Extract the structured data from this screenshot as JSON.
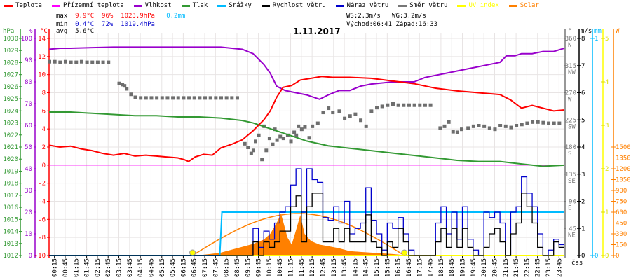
{
  "legend": [
    {
      "label": "Teplota",
      "color": "#ff0000"
    },
    {
      "label": "Přízemní teplota",
      "color": "#ff00ff"
    },
    {
      "label": "Vlhkost",
      "color": "#9900cc"
    },
    {
      "label": "Tlak",
      "color": "#339933"
    },
    {
      "label": "Srážky",
      "color": "#00bbff"
    },
    {
      "label": "Rychlost větru",
      "color": "#000000"
    },
    {
      "label": "Náraz větru",
      "color": "#0000cc"
    },
    {
      "label": "Směr větru",
      "color": "#777777"
    },
    {
      "label": "UV index",
      "color": "#ffff00"
    },
    {
      "label": "Solar",
      "color": "#ff8000"
    }
  ],
  "stats": {
    "max_label": "max",
    "max_temp": "9.9°C",
    "max_hum": "96%",
    "max_pres": "1023.9hPa",
    "rain": "0.2mm",
    "min_label": "min",
    "min_temp": "0.4°C",
    "min_hum": "72%",
    "min_pres": "1019.4hPa",
    "avg_label": "avg",
    "avg_temp": "5.6°C",
    "ws": "WS:2.3m/s",
    "wg": "WG:3.2m/s",
    "sunrise": "Východ:06:41",
    "sunset": "Západ:16:33"
  },
  "chart_data": {
    "type": "line",
    "title": "1.11.2017",
    "xlabel": "čas",
    "x_labels": [
      "00:15",
      "00:45",
      "01:15",
      "01:45",
      "02:15",
      "02:45",
      "03:15",
      "03:45",
      "04:15",
      "04:45",
      "05:15",
      "05:45",
      "06:15",
      "06:45",
      "07:15",
      "07:45",
      "08:15",
      "08:45",
      "09:15",
      "09:45",
      "10:15",
      "10:45",
      "11:15",
      "11:45",
      "12:15",
      "12:45",
      "13:15",
      "13:45",
      "14:15",
      "14:45",
      "15:15",
      "15:45",
      "16:15",
      "16:45",
      "17:15",
      "17:45",
      "18:15",
      "18:45",
      "19:15",
      "19:45",
      "20:15",
      "20:45",
      "21:15",
      "21:45",
      "22:15",
      "22:45",
      "23:15",
      "23:45"
    ],
    "axes": {
      "pressure": {
        "unit": "hPa",
        "ticks": [
          "1030",
          "1029",
          "1028",
          "1027",
          "1026",
          "1025",
          "1024",
          "1023",
          "1022",
          "1021",
          "1020",
          "1019",
          "1018",
          "1017",
          "1016",
          "1015",
          "1014",
          "1013",
          "1012"
        ],
        "range": [
          1012,
          1030
        ]
      },
      "humidity": {
        "unit": "%",
        "ticks": [
          "100",
          "90",
          "80",
          "70",
          "60",
          "50",
          "40",
          "30",
          "20",
          "10",
          "0"
        ],
        "range": [
          0,
          100
        ]
      },
      "temperature": {
        "unit": "°C",
        "ticks": [
          "14",
          "12",
          "10",
          "8",
          "6",
          "4",
          "2",
          "0",
          "-2",
          "-4",
          "-6",
          "-8",
          "-10"
        ],
        "range": [
          -10,
          14
        ]
      },
      "direction": {
        "unit": "°",
        "ticks": [
          "360",
          "315",
          "270",
          "225",
          "180",
          "135",
          "90",
          "45"
        ],
        "compass": [
          "N",
          "NW",
          "W",
          "SW",
          "S",
          "SE",
          "E",
          "NE"
        ],
        "range": [
          0,
          360
        ]
      },
      "wind": {
        "unit": "m/s",
        "ticks": [
          "8",
          "7",
          "6",
          "5",
          "4",
          "3",
          "2",
          "1",
          "0"
        ],
        "range": [
          0,
          8
        ]
      },
      "rain": {
        "unit": "mm",
        "ticks": [
          "1",
          "0"
        ],
        "range": [
          0,
          1
        ]
      },
      "uv": {
        "unit": "",
        "ticks": [
          "5",
          "4",
          "3",
          "2",
          "1",
          "0"
        ],
        "range": [
          0,
          5
        ]
      },
      "solar": {
        "unit": "W",
        "ticks": [
          "1500",
          "1350",
          "1200",
          "1050",
          "900",
          "750",
          "600",
          "450",
          "300",
          "150",
          "0"
        ],
        "range": [
          0,
          1500
        ]
      }
    },
    "sun_events_hours": [
      6.68,
      16.55
    ],
    "series": {
      "temperature": [
        [
          0,
          2.2
        ],
        [
          0.5,
          2.0
        ],
        [
          1,
          2.1
        ],
        [
          1.5,
          1.8
        ],
        [
          2,
          1.6
        ],
        [
          2.5,
          1.3
        ],
        [
          3,
          1.1
        ],
        [
          3.5,
          1.3
        ],
        [
          4,
          1.0
        ],
        [
          4.5,
          1.1
        ],
        [
          5,
          1.0
        ],
        [
          5.5,
          0.9
        ],
        [
          6,
          0.8
        ],
        [
          6.3,
          0.6
        ],
        [
          6.5,
          0.4
        ],
        [
          6.8,
          0.9
        ],
        [
          7.2,
          1.2
        ],
        [
          7.6,
          1.1
        ],
        [
          8,
          1.9
        ],
        [
          8.5,
          2.3
        ],
        [
          9,
          2.8
        ],
        [
          9.5,
          3.8
        ],
        [
          10,
          5.0
        ],
        [
          10.3,
          6.0
        ],
        [
          10.6,
          7.5
        ],
        [
          10.9,
          8.6
        ],
        [
          11.3,
          8.8
        ],
        [
          11.7,
          9.4
        ],
        [
          12.2,
          9.6
        ],
        [
          12.7,
          9.8
        ],
        [
          13.2,
          9.7
        ],
        [
          14,
          9.7
        ],
        [
          15,
          9.6
        ],
        [
          16,
          9.3
        ],
        [
          17,
          9.0
        ],
        [
          18,
          8.5
        ],
        [
          19,
          8.2
        ],
        [
          20,
          8.0
        ],
        [
          21,
          7.8
        ],
        [
          21.5,
          7.2
        ],
        [
          22,
          6.3
        ],
        [
          22.5,
          6.6
        ],
        [
          23,
          6.3
        ],
        [
          23.5,
          6.0
        ],
        [
          24,
          6.1
        ]
      ],
      "ground_temperature": [
        [
          0,
          0
        ],
        [
          24,
          0
        ]
      ],
      "humidity": [
        [
          0,
          95
        ],
        [
          0.5,
          95.5
        ],
        [
          1,
          95.5
        ],
        [
          3,
          96
        ],
        [
          5,
          96
        ],
        [
          7,
          96
        ],
        [
          8,
          96
        ],
        [
          9,
          95
        ],
        [
          9.5,
          93
        ],
        [
          10,
          88
        ],
        [
          10.3,
          84
        ],
        [
          10.6,
          78
        ],
        [
          11,
          76
        ],
        [
          11.5,
          75
        ],
        [
          12,
          74
        ],
        [
          12.6,
          72
        ],
        [
          13,
          74
        ],
        [
          13.5,
          76
        ],
        [
          14,
          76
        ],
        [
          14.5,
          78
        ],
        [
          15,
          79
        ],
        [
          16,
          80
        ],
        [
          17,
          80
        ],
        [
          17.5,
          82
        ],
        [
          18,
          83
        ],
        [
          18.5,
          84
        ],
        [
          19,
          85
        ],
        [
          19.5,
          86
        ],
        [
          20,
          87
        ],
        [
          20.5,
          88
        ],
        [
          21,
          89
        ],
        [
          21.3,
          92
        ],
        [
          21.7,
          92
        ],
        [
          22,
          93
        ],
        [
          22.5,
          93
        ],
        [
          23,
          94
        ],
        [
          23.5,
          94
        ],
        [
          24,
          95.5
        ]
      ],
      "pressure": [
        [
          0,
          1023.9
        ],
        [
          1,
          1023.9
        ],
        [
          2,
          1023.8
        ],
        [
          3,
          1023.7
        ],
        [
          4,
          1023.6
        ],
        [
          5,
          1023.6
        ],
        [
          6,
          1023.5
        ],
        [
          7,
          1023.5
        ],
        [
          8,
          1023.4
        ],
        [
          9,
          1023.2
        ],
        [
          9.5,
          1023.0
        ],
        [
          10,
          1022.7
        ],
        [
          10.5,
          1022.4
        ],
        [
          11,
          1022.1
        ],
        [
          11.5,
          1021.8
        ],
        [
          12,
          1021.5
        ],
        [
          13,
          1021.1
        ],
        [
          14,
          1020.9
        ],
        [
          15,
          1020.7
        ],
        [
          16,
          1020.5
        ],
        [
          17,
          1020.3
        ],
        [
          18,
          1020.1
        ],
        [
          19,
          1019.9
        ],
        [
          20,
          1019.8
        ],
        [
          21,
          1019.8
        ],
        [
          22,
          1019.6
        ],
        [
          23,
          1019.4
        ],
        [
          24,
          1019.5
        ]
      ],
      "rain_cumulative": [
        [
          0,
          0
        ],
        [
          7.95,
          0
        ],
        [
          8.05,
          0.2
        ],
        [
          24,
          0.2
        ]
      ],
      "uv": [
        [
          0,
          0
        ],
        [
          24,
          0
        ]
      ],
      "solar_theoretical_peak": 580,
      "solar": [
        [
          6.7,
          0
        ],
        [
          7,
          5
        ],
        [
          7.5,
          20
        ],
        [
          8,
          40
        ],
        [
          8.5,
          80
        ],
        [
          9,
          120
        ],
        [
          9.5,
          160
        ],
        [
          10,
          220
        ],
        [
          10.3,
          300
        ],
        [
          10.6,
          450
        ],
        [
          10.8,
          580
        ],
        [
          10.95,
          420
        ],
        [
          11.1,
          250
        ],
        [
          11.3,
          150
        ],
        [
          11.5,
          350
        ],
        [
          11.7,
          560
        ],
        [
          11.9,
          300
        ],
        [
          12.2,
          200
        ],
        [
          12.6,
          150
        ],
        [
          13,
          130
        ],
        [
          13.5,
          100
        ],
        [
          14,
          60
        ],
        [
          14.5,
          50
        ],
        [
          15,
          40
        ],
        [
          15.5,
          30
        ],
        [
          16,
          20
        ],
        [
          16.4,
          10
        ],
        [
          16.6,
          0
        ]
      ],
      "wind_speed": [
        0,
        0,
        0,
        0,
        0,
        0,
        0,
        0,
        0,
        0,
        0,
        0,
        0,
        0,
        0,
        0,
        0,
        0,
        0,
        0,
        0,
        0,
        0,
        0,
        0,
        0,
        0,
        0,
        0,
        0,
        0,
        0,
        0,
        0,
        0,
        0,
        0,
        0,
        0.5,
        0,
        0.5,
        0.3,
        0.5,
        0.9,
        0.9,
        1.8,
        2.2,
        0.5,
        1.8,
        2.3,
        2.3,
        0.5,
        0.5,
        1.0,
        0.5,
        1.0,
        0.5,
        0.5,
        0.5,
        1.5,
        0.5,
        0.3,
        0,
        0.5,
        0.3,
        1.0,
        0.5,
        0,
        0,
        0,
        0,
        0,
        0.5,
        1.0,
        0.3,
        1.0,
        0.3,
        1.0,
        0.3,
        0,
        0,
        0.3,
        0.8,
        1.0,
        0.5,
        0,
        0.8,
        1.2,
        2.3,
        1.8,
        1.2,
        0.3,
        0,
        0,
        0.5,
        0.3
      ],
      "wind_gust": [
        0,
        0,
        0,
        0,
        0,
        0,
        0,
        0,
        0,
        0,
        0,
        0,
        0,
        0,
        0,
        0,
        0,
        0,
        0,
        0,
        0,
        0,
        0,
        0,
        0,
        0,
        0,
        0,
        0,
        0,
        0,
        0,
        0,
        0,
        0,
        0,
        0,
        0,
        1.0,
        0.3,
        0.9,
        0.6,
        1.2,
        1.6,
        1.8,
        2.6,
        3.2,
        1.6,
        3.2,
        2.8,
        2.7,
        1.4,
        1.3,
        1.8,
        1.2,
        2.0,
        0.8,
        1.0,
        1.2,
        2.5,
        1.3,
        0.8,
        0.2,
        1.2,
        1.0,
        1.4,
        0.8,
        0.2,
        0,
        0,
        0,
        0,
        1.2,
        1.8,
        0.8,
        1.6,
        0.6,
        1.8,
        0.6,
        0.2,
        0,
        1.6,
        1.4,
        1.6,
        1.2,
        0,
        1.6,
        1.8,
        2.9,
        2.3,
        1.8,
        0.8,
        0,
        0.2,
        0.6,
        0.4
      ],
      "wind_direction": [
        [
          0,
          322
        ],
        [
          0.25,
          322
        ],
        [
          0.5,
          321
        ],
        [
          0.75,
          322
        ],
        [
          1,
          321
        ],
        [
          1.25,
          321
        ],
        [
          1.5,
          322
        ],
        [
          1.75,
          321
        ],
        [
          2,
          321
        ],
        [
          2.25,
          321
        ],
        [
          2.5,
          321
        ],
        [
          2.75,
          321
        ],
        [
          3.25,
          286
        ],
        [
          3.4,
          284
        ],
        [
          3.5,
          282
        ],
        [
          3.6,
          277
        ],
        [
          3.8,
          268
        ],
        [
          4,
          263
        ],
        [
          4.25,
          262
        ],
        [
          4.5,
          262
        ],
        [
          4.75,
          262
        ],
        [
          5,
          262
        ],
        [
          5.25,
          262
        ],
        [
          5.5,
          262
        ],
        [
          5.75,
          262
        ],
        [
          6,
          262
        ],
        [
          6.25,
          262
        ],
        [
          6.5,
          262
        ],
        [
          6.75,
          262
        ],
        [
          7,
          262
        ],
        [
          7.25,
          262
        ],
        [
          7.5,
          262
        ],
        [
          7.75,
          262
        ],
        [
          8,
          262
        ],
        [
          8.25,
          262
        ],
        [
          8.5,
          262
        ],
        [
          8.75,
          262
        ],
        [
          9.1,
          186
        ],
        [
          9.25,
          180
        ],
        [
          9.4,
          170
        ],
        [
          9.5,
          175
        ],
        [
          9.6,
          190
        ],
        [
          9.75,
          200
        ],
        [
          9.9,
          160
        ],
        [
          10,
          215
        ],
        [
          10.1,
          175
        ],
        [
          10.25,
          195
        ],
        [
          10.4,
          185
        ],
        [
          10.5,
          210
        ],
        [
          10.6,
          192
        ],
        [
          10.75,
          198
        ],
        [
          10.9,
          195
        ],
        [
          11.1,
          200
        ],
        [
          11.25,
          190
        ],
        [
          11.4,
          205
        ],
        [
          11.5,
          200
        ],
        [
          11.6,
          215
        ],
        [
          11.75,
          210
        ],
        [
          11.9,
          214
        ],
        [
          12.1,
          196
        ],
        [
          12.25,
          215
        ],
        [
          12.5,
          220
        ],
        [
          12.75,
          238
        ],
        [
          13,
          245
        ],
        [
          13.2,
          238
        ],
        [
          13.5,
          240
        ],
        [
          13.75,
          228
        ],
        [
          14,
          232
        ],
        [
          14.25,
          235
        ],
        [
          14.5,
          225
        ],
        [
          14.75,
          215
        ],
        [
          15,
          240
        ],
        [
          15.25,
          246
        ],
        [
          15.5,
          248
        ],
        [
          15.75,
          250
        ],
        [
          16,
          252
        ],
        [
          16.25,
          250
        ],
        [
          16.5,
          250
        ],
        [
          16.75,
          250
        ],
        [
          17,
          250
        ],
        [
          17.25,
          250
        ],
        [
          17.5,
          250
        ],
        [
          17.75,
          250
        ],
        [
          18.2,
          212
        ],
        [
          18.4,
          215
        ],
        [
          18.6,
          222
        ],
        [
          18.8,
          206
        ],
        [
          19,
          205
        ],
        [
          19.2,
          210
        ],
        [
          19.5,
          212
        ],
        [
          19.75,
          215
        ],
        [
          20,
          216
        ],
        [
          20.25,
          215
        ],
        [
          20.5,
          212
        ],
        [
          20.75,
          210
        ],
        [
          21,
          216
        ],
        [
          21.25,
          215
        ],
        [
          21.5,
          213
        ],
        [
          21.75,
          216
        ],
        [
          22,
          218
        ],
        [
          22.25,
          220
        ],
        [
          22.5,
          222
        ],
        [
          22.75,
          222
        ],
        [
          23,
          221
        ],
        [
          23.25,
          220
        ],
        [
          23.5,
          220
        ],
        [
          23.75,
          220
        ]
      ]
    }
  }
}
